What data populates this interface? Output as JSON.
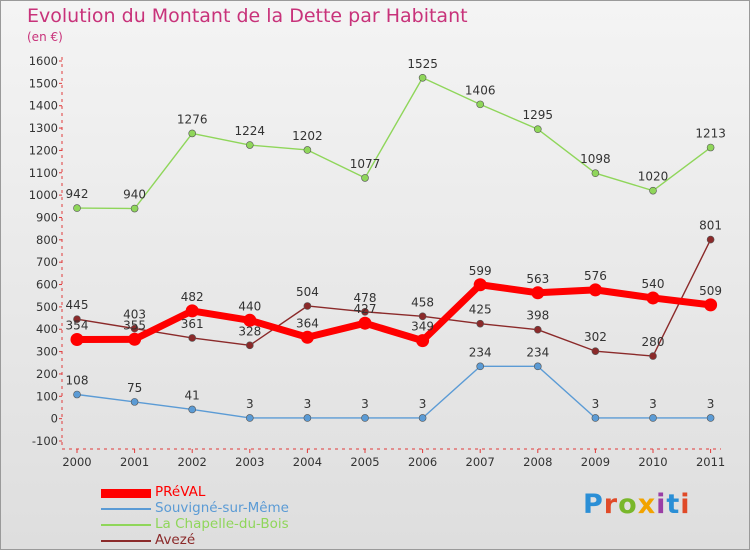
{
  "chart_data": {
    "type": "line",
    "title": "Evolution du Montant de la Dette par Habitant",
    "subtitle": "(en €)",
    "x": [
      "2000",
      "2001",
      "2002",
      "2003",
      "2004",
      "2005",
      "2006",
      "2007",
      "2008",
      "2009",
      "2010",
      "2011"
    ],
    "yticks": [
      "-100",
      "0",
      "100",
      "200",
      "300",
      "400",
      "500",
      "600",
      "700",
      "800",
      "900",
      "1000",
      "1100",
      "1200",
      "1300",
      "1400",
      "1500",
      "1600"
    ],
    "ylim": [
      -100,
      1600
    ],
    "grid": false,
    "legend_position": "bottom-left",
    "series": [
      {
        "name": "PRéVAL",
        "color": "#ff0000",
        "values": [
          354,
          355,
          482,
          440,
          364,
          427,
          349,
          599,
          563,
          576,
          540,
          509
        ]
      },
      {
        "name": "Souvigné-sur-Même",
        "color": "#5b9bd5",
        "values": [
          108,
          75,
          41,
          3,
          3,
          3,
          3,
          234,
          234,
          3,
          3,
          3
        ]
      },
      {
        "name": "La Chapelle-du-Bois",
        "color": "#8fd65a",
        "values": [
          942,
          940,
          1276,
          1224,
          1202,
          1077,
          1525,
          1406,
          1295,
          1098,
          1020,
          1213
        ]
      },
      {
        "name": "Avezé",
        "color": "#8b2a2a",
        "values": [
          445,
          403,
          361,
          328,
          504,
          478,
          458,
          425,
          398,
          302,
          280,
          801
        ]
      }
    ]
  },
  "logo": {
    "letters": [
      "P",
      "r",
      "o",
      "x",
      "i",
      "t",
      "i"
    ]
  }
}
